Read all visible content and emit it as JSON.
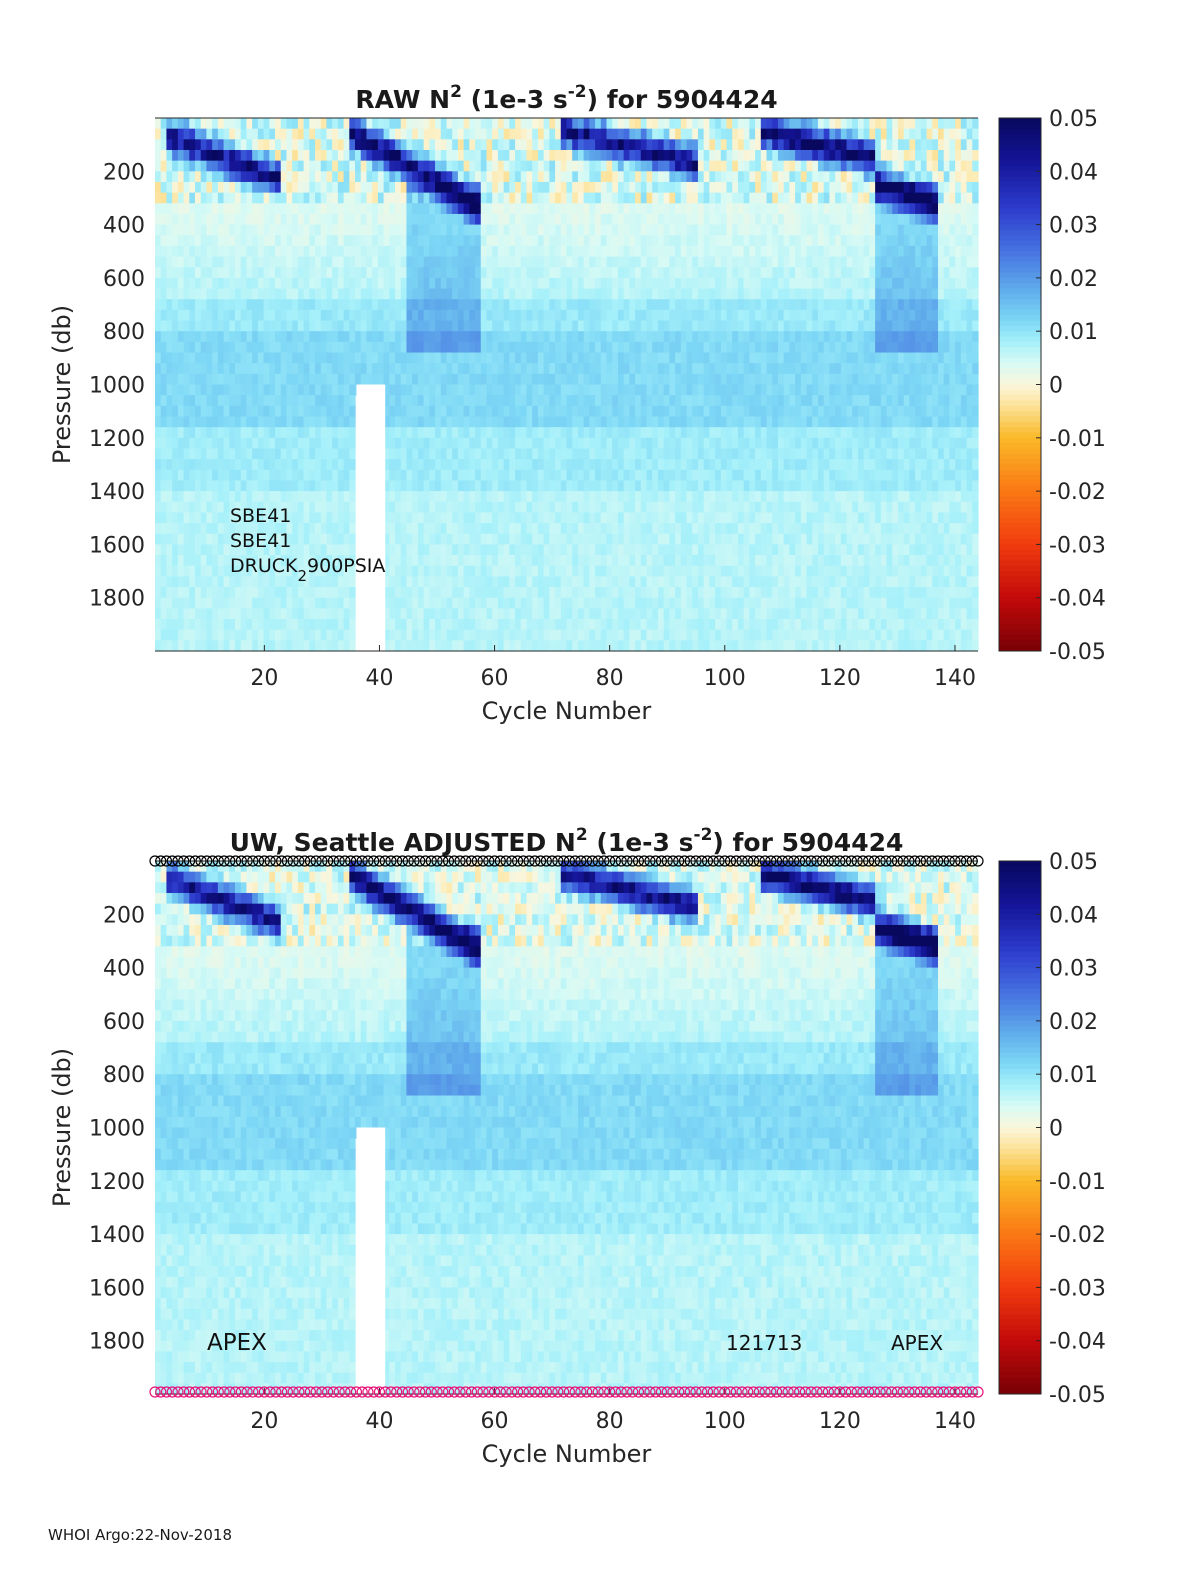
{
  "chart_data": [
    {
      "type": "heatmap",
      "title": "RAW N² (1e-3 s⁻²) for 5904424",
      "title_parts": {
        "pre": "RAW N",
        "sup1": "2",
        "mid": " (1e-3 s",
        "sup2": "-2",
        "post": ") for 5904424"
      },
      "xlabel": "Cycle Number",
      "ylabel": "Pressure (db)",
      "xlim": [
        1,
        144
      ],
      "ylim": [
        2000,
        0
      ],
      "xticks": [
        20,
        40,
        60,
        80,
        100,
        120,
        140
      ],
      "yticks": [
        200,
        400,
        600,
        800,
        1000,
        1200,
        1400,
        1600,
        1800
      ],
      "colorbar": {
        "min": -0.05,
        "max": 0.05,
        "ticks": [
          "0.05",
          "0.04",
          "0.03",
          "0.02",
          "0.01",
          "0",
          "-0.01",
          "-0.02",
          "-0.03",
          "-0.04",
          "-0.05"
        ]
      },
      "annotations": {
        "line1": "SBE41",
        "line2": "SBE41",
        "line3_pre": "DRUCK",
        "line3_sub": "2",
        "line3_post": "900PSIA"
      },
      "strong_stratification_cycles": [
        [
          3,
          22
        ],
        [
          35,
          57
        ],
        [
          72,
          95
        ],
        [
          107,
          126
        ],
        [
          127,
          137
        ]
      ],
      "missing_data_cycles": [
        36,
        37,
        38,
        39,
        40
      ]
    },
    {
      "type": "heatmap",
      "title": "UW, Seattle  ADJUSTED N² (1e-3 s⁻²) for 5904424",
      "title_parts": {
        "pre": "UW, Seattle  ADJUSTED N",
        "sup1": "2",
        "mid": " (1e-3 s",
        "sup2": "-2",
        "post": ") for 5904424"
      },
      "xlabel": "Cycle Number",
      "ylabel": "Pressure (db)",
      "xlim": [
        1,
        144
      ],
      "ylim": [
        2000,
        0
      ],
      "xticks": [
        20,
        40,
        60,
        80,
        100,
        120,
        140
      ],
      "yticks": [
        200,
        400,
        600,
        800,
        1000,
        1200,
        1400,
        1600,
        1800
      ],
      "colorbar": {
        "min": -0.05,
        "max": 0.05,
        "ticks": [
          "0.05",
          "0.04",
          "0.03",
          "0.02",
          "0.01",
          "0",
          "-0.01",
          "-0.02",
          "-0.03",
          "-0.04",
          "-0.05"
        ]
      },
      "annotations": {
        "left": "APEX",
        "mid": "121713",
        "right": "APEX"
      },
      "qc_marker_colors": {
        "top": "#000000",
        "bottom": "#e8137b"
      },
      "strong_stratification_cycles": [
        [
          3,
          22
        ],
        [
          35,
          57
        ],
        [
          72,
          95
        ],
        [
          107,
          126
        ],
        [
          127,
          137
        ]
      ],
      "missing_data_cycles": [
        36,
        37,
        38,
        39,
        40
      ]
    }
  ],
  "footer": "WHOI Argo:22-Nov-2018",
  "colors": {
    "text": "#1a1a1a",
    "axis": "#262626",
    "background": "#ffffff"
  }
}
